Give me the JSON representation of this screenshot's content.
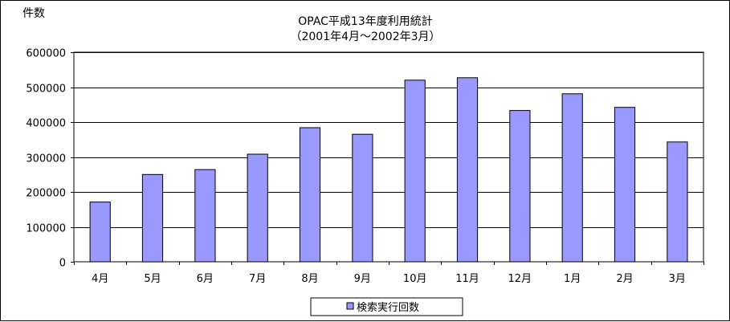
{
  "chart_data": {
    "type": "bar",
    "title": "OPAC平成13年度利用統計",
    "subtitle": "（2001年4月～2002年3月）",
    "ylabel": "件数",
    "xlabel": "",
    "categories": [
      "4月",
      "5月",
      "6月",
      "7月",
      "8月",
      "9月",
      "10月",
      "11月",
      "12月",
      "1月",
      "2月",
      "3月"
    ],
    "series": [
      {
        "name": "検索実行回数",
        "values": [
          171000,
          250000,
          264000,
          308000,
          384000,
          365000,
          520000,
          527000,
          433000,
          481000,
          442000,
          343000
        ]
      }
    ],
    "ylim": [
      0,
      600000
    ],
    "yticks": [
      0,
      100000,
      200000,
      300000,
      400000,
      500000,
      600000
    ],
    "ytick_labels": [
      "0",
      "100000",
      "200000",
      "300000",
      "400000",
      "500000",
      "600000"
    ],
    "grid": true,
    "legend_position": "bottom",
    "colors": {
      "bar_fill": "#9999ff",
      "bar_stroke": "#000000",
      "grid": "#000000"
    }
  }
}
